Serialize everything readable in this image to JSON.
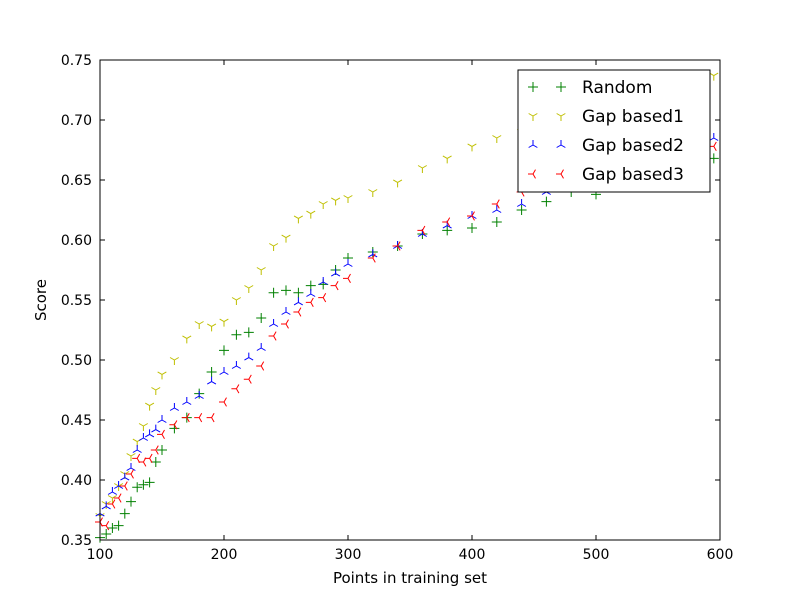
{
  "chart_data": {
    "type": "scatter",
    "title": "",
    "xlabel": "Points in training set",
    "ylabel": "Score",
    "xlim": [
      100,
      600
    ],
    "ylim": [
      0.35,
      0.75
    ],
    "xticks": [
      100,
      200,
      300,
      400,
      500,
      600
    ],
    "xtick_labels": [
      "100",
      "200",
      "300",
      "400",
      "500",
      "600"
    ],
    "yticks": [
      0.35,
      0.4,
      0.45,
      0.5,
      0.55,
      0.6,
      0.65,
      0.7,
      0.75
    ],
    "ytick_labels": [
      "0.35",
      "0.40",
      "0.45",
      "0.50",
      "0.55",
      "0.60",
      "0.65",
      "0.70",
      "0.75"
    ],
    "grid": false,
    "legend_position": "top-right",
    "series": [
      {
        "name": "Random",
        "color": "#008000",
        "marker": "plus",
        "x": [
          100,
          105,
          110,
          115,
          120,
          125,
          130,
          135,
          140,
          145,
          150,
          160,
          170,
          180,
          190,
          200,
          210,
          220,
          230,
          240,
          250,
          260,
          270,
          280,
          290,
          300,
          320,
          340,
          360,
          380,
          400,
          420,
          440,
          460,
          480,
          500,
          520,
          540,
          560,
          580,
          595
        ],
        "y": [
          0.352,
          0.355,
          0.36,
          0.362,
          0.372,
          0.382,
          0.394,
          0.396,
          0.398,
          0.415,
          0.425,
          0.443,
          0.452,
          0.472,
          0.49,
          0.508,
          0.521,
          0.523,
          0.535,
          0.556,
          0.558,
          0.556,
          0.562,
          0.563,
          0.575,
          0.585,
          0.59,
          0.595,
          0.605,
          0.608,
          0.61,
          0.615,
          0.625,
          0.632,
          0.64,
          0.638,
          0.645,
          0.65,
          0.655,
          0.66,
          0.668
        ]
      },
      {
        "name": "Gap based1",
        "color": "#bfbf00",
        "marker": "tri_down",
        "x": [
          100,
          105,
          110,
          115,
          120,
          125,
          130,
          135,
          140,
          145,
          150,
          160,
          170,
          180,
          190,
          200,
          210,
          220,
          230,
          240,
          250,
          260,
          270,
          280,
          290,
          300,
          320,
          340,
          360,
          380,
          400,
          420,
          440,
          460,
          480,
          500,
          520,
          540,
          560,
          580,
          595
        ],
        "y": [
          0.37,
          0.38,
          0.385,
          0.395,
          0.405,
          0.42,
          0.432,
          0.445,
          0.462,
          0.475,
          0.488,
          0.5,
          0.518,
          0.53,
          0.528,
          0.532,
          0.55,
          0.56,
          0.575,
          0.595,
          0.602,
          0.618,
          0.622,
          0.63,
          0.633,
          0.635,
          0.64,
          0.648,
          0.66,
          0.668,
          0.678,
          0.685,
          0.69,
          0.7,
          0.703,
          0.712,
          0.718,
          0.722,
          0.728,
          0.733,
          0.737
        ]
      },
      {
        "name": "Gap based2",
        "color": "#0000ff",
        "marker": "tri_up",
        "x": [
          100,
          105,
          110,
          115,
          120,
          125,
          130,
          135,
          140,
          145,
          150,
          160,
          170,
          180,
          190,
          200,
          210,
          220,
          230,
          240,
          250,
          260,
          270,
          280,
          290,
          300,
          320,
          340,
          360,
          380,
          400,
          420,
          440,
          460,
          480,
          500,
          520,
          540,
          560,
          580,
          595
        ],
        "y": [
          0.372,
          0.378,
          0.39,
          0.395,
          0.402,
          0.41,
          0.425,
          0.435,
          0.438,
          0.442,
          0.45,
          0.46,
          0.465,
          0.47,
          0.482,
          0.49,
          0.495,
          0.502,
          0.51,
          0.53,
          0.54,
          0.548,
          0.555,
          0.565,
          0.572,
          0.58,
          0.588,
          0.595,
          0.605,
          0.612,
          0.62,
          0.625,
          0.63,
          0.64,
          0.648,
          0.655,
          0.66,
          0.668,
          0.672,
          0.678,
          0.685
        ]
      },
      {
        "name": "Gap based3",
        "color": "#ff0000",
        "marker": "tri_left",
        "x": [
          100,
          105,
          110,
          115,
          120,
          125,
          130,
          135,
          140,
          145,
          150,
          160,
          170,
          180,
          190,
          200,
          210,
          220,
          230,
          240,
          250,
          260,
          270,
          280,
          290,
          300,
          320,
          340,
          360,
          380,
          400,
          420,
          440,
          460,
          480,
          500,
          520,
          540,
          560,
          580,
          595
        ],
        "y": [
          0.365,
          0.362,
          0.38,
          0.385,
          0.395,
          0.405,
          0.418,
          0.415,
          0.418,
          0.425,
          0.438,
          0.446,
          0.452,
          0.452,
          0.452,
          0.465,
          0.476,
          0.484,
          0.495,
          0.52,
          0.53,
          0.54,
          0.548,
          0.552,
          0.562,
          0.568,
          0.585,
          0.595,
          0.608,
          0.615,
          0.62,
          0.63,
          0.64,
          0.645,
          0.65,
          0.655,
          0.66,
          0.662,
          0.668,
          0.672,
          0.678
        ]
      }
    ]
  }
}
